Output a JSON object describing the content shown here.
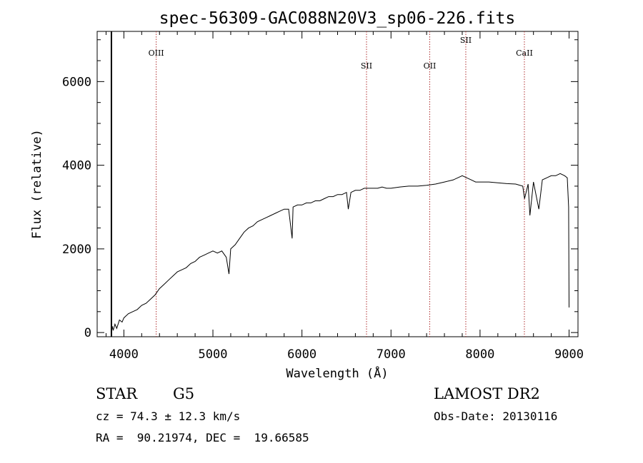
{
  "chart_data": {
    "type": "line",
    "title": "spec-56309-GAC088N20V3_sp06-226.fits",
    "xlabel": "Wavelength (Å)",
    "ylabel": "Flux (relative)",
    "xlim": [
      3700,
      9100
    ],
    "ylim": [
      -100,
      7200
    ],
    "x_ticks": [
      4000,
      5000,
      6000,
      7000,
      8000,
      9000
    ],
    "y_ticks": [
      0,
      2000,
      4000,
      6000
    ],
    "grid": false,
    "series": [
      {
        "x": [
          3860,
          3870,
          3880,
          3900,
          3920,
          3950,
          3980,
          4000,
          4050,
          4100,
          4150,
          4200,
          4250,
          4300,
          4350,
          4400,
          4450,
          4500,
          4550,
          4600,
          4650,
          4700,
          4750,
          4800,
          4850,
          4900,
          4950,
          5000,
          5050,
          5100,
          5150,
          5180,
          5200,
          5250,
          5300,
          5350,
          5400,
          5450,
          5500,
          5550,
          5600,
          5650,
          5700,
          5750,
          5800,
          5850,
          5890,
          5900,
          5950,
          6000,
          6050,
          6100,
          6150,
          6200,
          6250,
          6300,
          6350,
          6400,
          6450,
          6500,
          6520,
          6550,
          6600,
          6650,
          6700,
          6750,
          6800,
          6850,
          6900,
          6950,
          7000,
          7100,
          7200,
          7300,
          7400,
          7500,
          7600,
          7700,
          7750,
          7800,
          7850,
          7900,
          7950,
          8000,
          8100,
          8200,
          8300,
          8400,
          8480,
          8500,
          8540,
          8560,
          8600,
          8660,
          8700,
          8750,
          8800,
          8850,
          8900,
          8950,
          8980,
          8995,
          9000
        ],
        "y": [
          0,
          150,
          50,
          200,
          100,
          300,
          250,
          350,
          450,
          500,
          550,
          650,
          700,
          800,
          900,
          1050,
          1150,
          1250,
          1350,
          1450,
          1500,
          1550,
          1650,
          1700,
          1800,
          1850,
          1900,
          1950,
          1900,
          1950,
          1800,
          1400,
          2000,
          2100,
          2250,
          2400,
          2500,
          2550,
          2650,
          2700,
          2750,
          2800,
          2850,
          2900,
          2950,
          2950,
          2250,
          3000,
          3050,
          3050,
          3100,
          3100,
          3150,
          3150,
          3200,
          3250,
          3250,
          3300,
          3300,
          3350,
          2950,
          3350,
          3400,
          3400,
          3450,
          3450,
          3450,
          3450,
          3480,
          3450,
          3450,
          3480,
          3500,
          3500,
          3520,
          3550,
          3600,
          3650,
          3700,
          3750,
          3700,
          3650,
          3600,
          3600,
          3600,
          3580,
          3560,
          3550,
          3500,
          3200,
          3550,
          2800,
          3600,
          2950,
          3650,
          3700,
          3750,
          3750,
          3800,
          3750,
          3700,
          3000,
          600
        ]
      }
    ],
    "vertical_lines": [
      {
        "x": 4363,
        "label": "OIII"
      },
      {
        "x": 6725,
        "label": "SII"
      },
      {
        "x": 7435,
        "label": "OII"
      },
      {
        "x": 7840,
        "label": "SII"
      },
      {
        "x": 8498,
        "label": "CaII"
      }
    ],
    "edge_marker_x": 3860
  },
  "info": {
    "object_class": "STAR",
    "subclass": "G5",
    "survey": "LAMOST DR2",
    "cz": "cz = 74.3 ± 12.3 km/s",
    "obs_date": "Obs-Date: 20130116",
    "coords": "RA =  90.21974, DEC =  19.66585"
  }
}
